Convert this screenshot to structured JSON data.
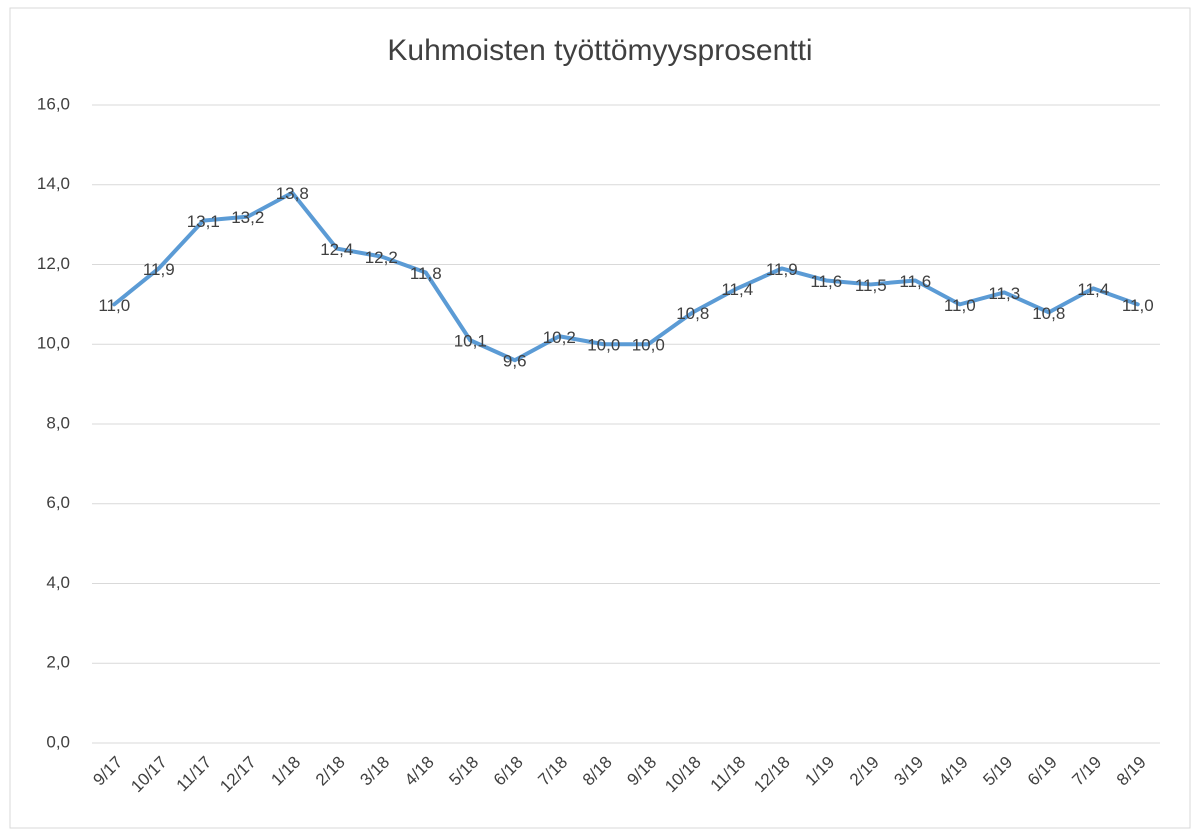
{
  "chart_data": {
    "type": "line",
    "title": "Kuhmoisten työttömyysprosentti",
    "categories": [
      "9/17",
      "10/17",
      "11/17",
      "12/17",
      "1/18",
      "2/18",
      "3/18",
      "4/18",
      "5/18",
      "6/18",
      "7/18",
      "8/18",
      "9/18",
      "10/18",
      "11/18",
      "12/18",
      "1/19",
      "2/19",
      "3/19",
      "4/19",
      "5/19",
      "6/19",
      "7/19",
      "8/19"
    ],
    "values": [
      11.0,
      11.9,
      13.1,
      13.2,
      13.8,
      12.4,
      12.2,
      11.8,
      10.1,
      9.6,
      10.2,
      10.0,
      10.0,
      10.8,
      11.4,
      11.9,
      11.6,
      11.5,
      11.6,
      11.0,
      11.3,
      10.8,
      11.4,
      11.0
    ],
    "value_labels": [
      "11,0",
      "11,9",
      "13,1",
      "13,2",
      "13,8",
      "12,4",
      "12,2",
      "11,8",
      "10,1",
      "9,6",
      "10,2",
      "10,0",
      "10,0",
      "10,8",
      "11,4",
      "11,9",
      "11,6",
      "11,5",
      "11,6",
      "11,0",
      "11,3",
      "10,8",
      "11,4",
      "11,0"
    ],
    "color": "#5b9bd5",
    "ylim": [
      0,
      16
    ],
    "yticks": [
      {
        "value": 0,
        "label": "0,0"
      },
      {
        "value": 2,
        "label": "2,0"
      },
      {
        "value": 4,
        "label": "4,0"
      },
      {
        "value": 6,
        "label": "6,0"
      },
      {
        "value": 8,
        "label": "8,0"
      },
      {
        "value": 10,
        "label": "10,0"
      },
      {
        "value": 12,
        "label": "12,0"
      },
      {
        "value": 14,
        "label": "14,0"
      },
      {
        "value": 16,
        "label": "16,0"
      }
    ],
    "grid": true
  }
}
